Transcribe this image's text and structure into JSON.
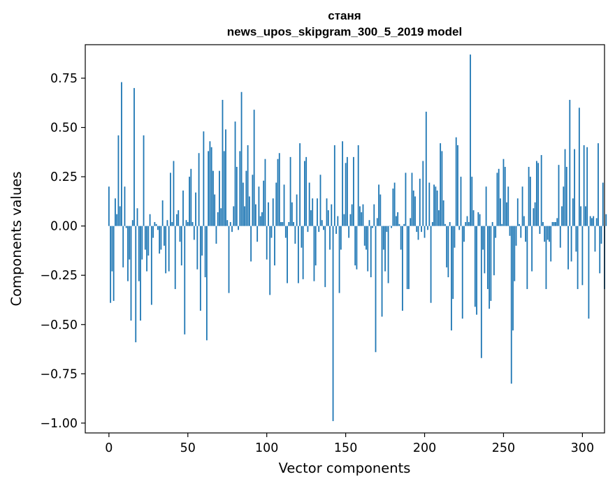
{
  "chart_data": {
    "type": "bar",
    "title_line1": "станя",
    "title_line2": "news_upos_skipgram_300_5_2019 model",
    "xlabel": "Vector components",
    "ylabel": "Components values",
    "xlim": [
      -15,
      314
    ],
    "ylim": [
      -1.05,
      0.92
    ],
    "xticks": [
      0,
      50,
      100,
      150,
      200,
      250,
      300
    ],
    "yticks": [
      -1.0,
      -0.75,
      -0.5,
      -0.25,
      0.0,
      0.25,
      0.5,
      0.75
    ],
    "ytick_labels": [
      "−1.00",
      "−0.75",
      "−0.50",
      "−0.25",
      "0.00",
      "0.25",
      "0.50",
      "0.75"
    ],
    "xtick_labels": [
      "0",
      "50",
      "100",
      "150",
      "200",
      "250",
      "300"
    ],
    "bar_color": "#1f77b4",
    "values": [
      0.2,
      -0.39,
      -0.23,
      -0.38,
      0.14,
      0.06,
      0.46,
      0.1,
      0.73,
      -0.21,
      0.2,
      -0.01,
      -0.28,
      -0.17,
      -0.48,
      0.03,
      0.7,
      -0.59,
      0.09,
      -0.28,
      -0.48,
      -0.17,
      0.46,
      -0.12,
      -0.23,
      -0.15,
      0.06,
      -0.4,
      -0.06,
      0.02,
      0.01,
      -0.02,
      -0.14,
      -0.12,
      0.13,
      -0.1,
      -0.24,
      0.03,
      -0.23,
      0.27,
      0.02,
      0.33,
      -0.32,
      0.06,
      0.08,
      -0.08,
      -0.2,
      0.18,
      -0.55,
      0.03,
      0.02,
      0.25,
      0.29,
      0.02,
      -0.07,
      0.17,
      -0.22,
      0.37,
      -0.43,
      -0.15,
      0.48,
      -0.26,
      -0.58,
      0.38,
      0.43,
      0.4,
      0.28,
      0.16,
      -0.09,
      0.07,
      0.28,
      0.09,
      0.64,
      0.38,
      0.49,
      0.03,
      -0.34,
      0.02,
      -0.03,
      0.1,
      0.53,
      0.3,
      -0.02,
      0.38,
      0.68,
      0.22,
      0.1,
      0.28,
      0.41,
      0.15,
      -0.18,
      0.26,
      0.59,
      0.11,
      -0.08,
      0.2,
      0.05,
      0.07,
      0.23,
      0.34,
      -0.17,
      0.12,
      -0.35,
      -0.06,
      0.14,
      -0.2,
      0.22,
      0.34,
      0.37,
      0.02,
      0.02,
      0.21,
      -0.06,
      -0.29,
      0.02,
      0.35,
      0.12,
      0.02,
      -0.09,
      0.16,
      -0.29,
      0.42,
      -0.11,
      -0.27,
      0.33,
      0.35,
      -0.03,
      0.22,
      0.08,
      0.14,
      -0.28,
      -0.2,
      0.14,
      -0.03,
      0.26,
      0.03,
      -0.02,
      -0.31,
      0.14,
      0.08,
      -0.12,
      0.11,
      -0.99,
      0.41,
      -0.04,
      0.05,
      -0.34,
      -0.12,
      0.43,
      0.06,
      0.32,
      0.35,
      -0.06,
      0.06,
      0.11,
      0.35,
      -0.2,
      -0.22,
      0.41,
      0.1,
      0.07,
      0.11,
      -0.1,
      -0.12,
      -0.23,
      0.03,
      -0.26,
      -0.01,
      0.11,
      -0.64,
      0.04,
      0.21,
      0.16,
      -0.46,
      -0.12,
      -0.23,
      -0.03,
      -0.29,
      0.0,
      -0.01,
      0.19,
      0.22,
      0.05,
      0.07,
      0.01,
      -0.12,
      -0.43,
      0.01,
      0.27,
      -0.32,
      -0.32,
      0.04,
      0.27,
      0.18,
      0.15,
      -0.03,
      -0.07,
      0.24,
      -0.03,
      0.33,
      -0.06,
      0.58,
      -0.02,
      0.22,
      -0.39,
      0.02,
      0.21,
      0.2,
      0.18,
      0.08,
      0.42,
      0.38,
      0.13,
      0.01,
      -0.21,
      -0.26,
      0.02,
      -0.53,
      -0.37,
      -0.11,
      0.45,
      0.41,
      -0.02,
      0.25,
      -0.47,
      -0.08,
      0.02,
      0.05,
      0.02,
      0.87,
      0.25,
      0.08,
      -0.41,
      -0.45,
      0.07,
      0.06,
      -0.67,
      -0.12,
      -0.24,
      0.2,
      -0.32,
      -0.42,
      -0.38,
      0.02,
      -0.25,
      -0.06,
      0.27,
      0.29,
      0.14,
      0.01,
      0.34,
      0.3,
      0.12,
      0.2,
      -0.05,
      -0.8,
      -0.53,
      -0.28,
      -0.1,
      0.14,
      0.01,
      -0.06,
      0.2,
      0.05,
      -0.08,
      -0.32,
      0.3,
      0.25,
      -0.23,
      0.09,
      0.12,
      0.33,
      0.32,
      -0.04,
      0.36,
      0.02,
      -0.08,
      -0.32,
      -0.07,
      -0.08,
      -0.18,
      0.02,
      0.02,
      0.02,
      0.04,
      0.31,
      -0.11,
      0.1,
      0.2,
      0.39,
      0.3,
      -0.22,
      0.64,
      -0.18,
      0.14,
      0.39,
      -0.13,
      -0.32,
      0.6,
      0.1,
      -0.3,
      0.41,
      0.1,
      0.4,
      -0.47,
      0.05,
      0.04,
      0.05,
      -0.13,
      0.04,
      0.42,
      -0.24,
      -0.09,
      0.22,
      -0.32,
      0.06
    ]
  }
}
